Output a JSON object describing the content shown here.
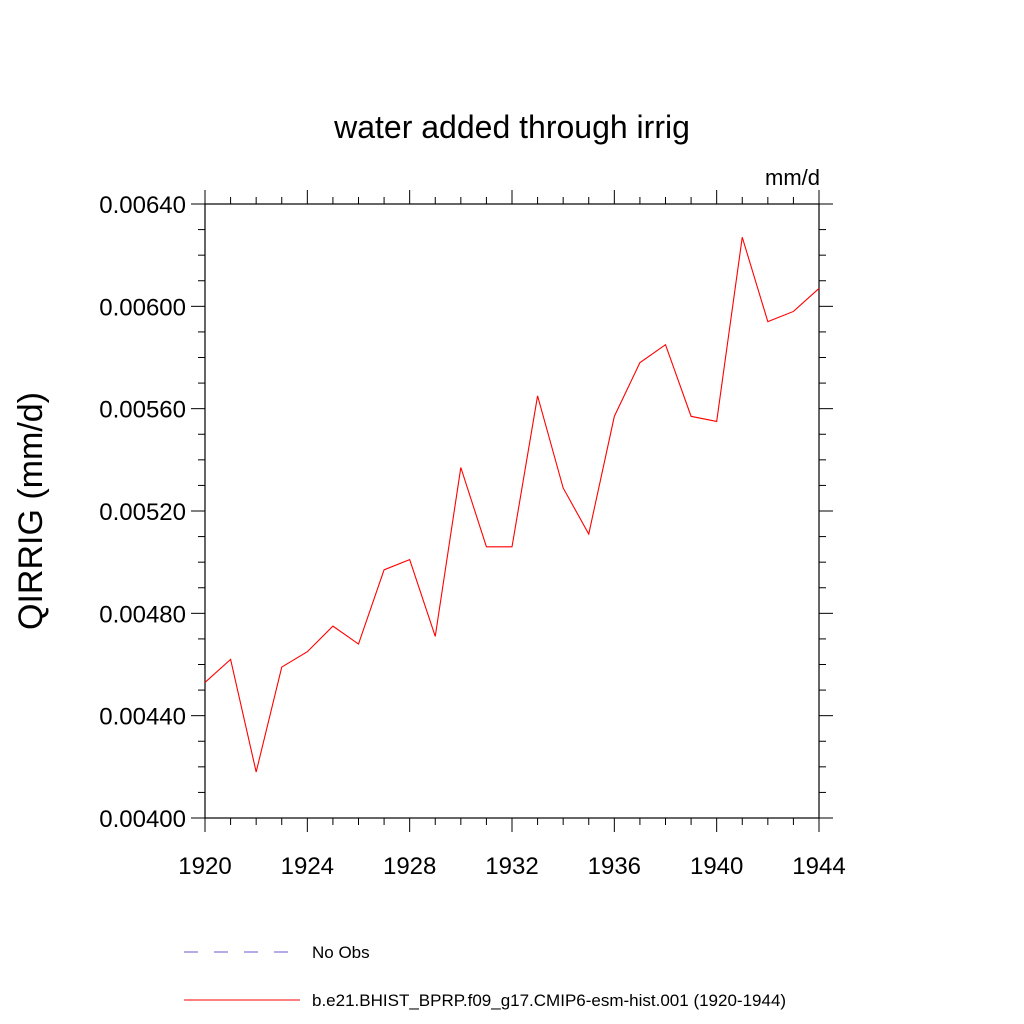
{
  "chart_data": {
    "type": "line",
    "title": "water added through irrig",
    "units": "mm/d",
    "xlabel": "",
    "ylabel": "QIRRIG  (mm/d)",
    "xlim": [
      1920,
      1944
    ],
    "ylim": [
      0.004,
      0.0064
    ],
    "xticks": [
      1920,
      1924,
      1928,
      1932,
      1936,
      1940,
      1944
    ],
    "xtick_labels": [
      "1920",
      "1924",
      "1928",
      "1932",
      "1936",
      "1940",
      "1944"
    ],
    "yticks": [
      0.004,
      0.0044,
      0.0048,
      0.0052,
      0.0056,
      0.006,
      0.0064
    ],
    "ytick_labels": [
      "0.00400",
      "0.00440",
      "0.00480",
      "0.00520",
      "0.00560",
      "0.00600",
      "0.00640"
    ],
    "grid": false,
    "legend": "bottom",
    "series": [
      {
        "name": "b.e21.BHIST_BPRP.f09_g17.CMIP6-esm-hist.001 (1920-1944)",
        "color": "#ff0000",
        "style": "solid",
        "x": [
          1920,
          1921,
          1922,
          1923,
          1924,
          1925,
          1926,
          1927,
          1928,
          1929,
          1930,
          1931,
          1932,
          1933,
          1934,
          1935,
          1936,
          1937,
          1938,
          1939,
          1940,
          1941,
          1942,
          1943,
          1944
        ],
        "y": [
          0.00453,
          0.00462,
          0.00418,
          0.00459,
          0.00465,
          0.00475,
          0.00468,
          0.00497,
          0.00501,
          0.00471,
          0.00537,
          0.00506,
          0.00506,
          0.00565,
          0.00529,
          0.00511,
          0.00557,
          0.00578,
          0.00585,
          0.00557,
          0.00555,
          0.00627,
          0.00594,
          0.00598,
          0.00607
        ]
      }
    ],
    "legend_entries": [
      {
        "label": "No Obs",
        "color": "#6a5acd",
        "style": "dashed"
      },
      {
        "label": "b.e21.BHIST_BPRP.f09_g17.CMIP6-esm-hist.001 (1920-1944)",
        "color": "#ff0000",
        "style": "solid"
      }
    ]
  }
}
